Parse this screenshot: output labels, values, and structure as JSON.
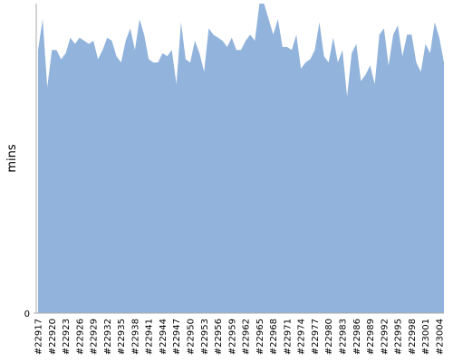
{
  "chart_data": {
    "type": "area",
    "y_label": "mins",
    "categories": [
      "#22917",
      null,
      null,
      "#22920",
      null,
      null,
      "#22923",
      null,
      null,
      "#22926",
      null,
      null,
      "#22929",
      null,
      null,
      "#22932",
      null,
      null,
      "#22935",
      null,
      null,
      "#22938",
      null,
      null,
      "#22941",
      null,
      null,
      "#22944",
      null,
      null,
      "#22947",
      null,
      null,
      "#22950",
      null,
      null,
      "#22953",
      null,
      null,
      "#22956",
      null,
      null,
      "#22959",
      null,
      null,
      "#22962",
      null,
      null,
      "#22965",
      null,
      null,
      "#22968",
      null,
      null,
      "#22971",
      null,
      null,
      "#22974",
      null,
      null,
      "#22977",
      null,
      null,
      "#22980",
      null,
      null,
      "#22983",
      null,
      null,
      "#22986",
      null,
      null,
      "#22989",
      null,
      null,
      "#22992",
      null,
      null,
      "#22995",
      null,
      null,
      "#22998",
      null,
      null,
      "#23001",
      null,
      null,
      "#23004",
      null
    ],
    "values": [
      85,
      95,
      73,
      85,
      85,
      82,
      84,
      89,
      87,
      89,
      88,
      87,
      88,
      82,
      85,
      89,
      88,
      83,
      81,
      88,
      92,
      85,
      95,
      90,
      82,
      81,
      81,
      84,
      83,
      85,
      74,
      94,
      82,
      81,
      88,
      84,
      78,
      92,
      90,
      89,
      88,
      86,
      89,
      85,
      85,
      88,
      90,
      88,
      100,
      100,
      95,
      90,
      95,
      86,
      86,
      85,
      90,
      79,
      81,
      82,
      85,
      94,
      83,
      81,
      89,
      81,
      85,
      70,
      84,
      87,
      75,
      77,
      80,
      74,
      90,
      92,
      80,
      90,
      93,
      83,
      90,
      90,
      81,
      78,
      87,
      84,
      94,
      89,
      81
    ],
    "color": "#92b4dc",
    "ylim": [
      0,
      100
    ],
    "yticks": [
      0
    ]
  }
}
